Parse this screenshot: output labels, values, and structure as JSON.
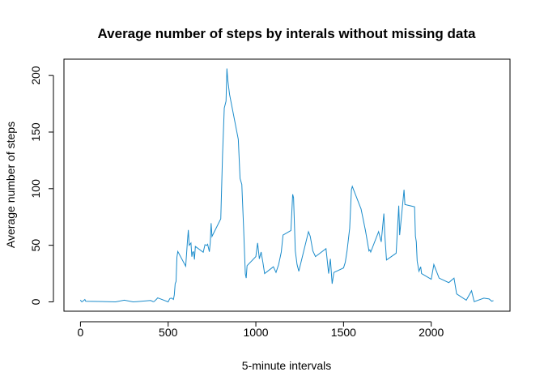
{
  "chart_data": {
    "type": "line",
    "title": "Average number of steps by interals without missing data",
    "x_label": "5-minute intervals",
    "y_label": "Average number of steps",
    "color": "#1c8ccb",
    "x": [
      0,
      5,
      10,
      25,
      30,
      100,
      150,
      200,
      250,
      300,
      320,
      400,
      415,
      420,
      435,
      440,
      450,
      500,
      505,
      510,
      520,
      530,
      535,
      540,
      545,
      550,
      555,
      600,
      610,
      615,
      620,
      630,
      635,
      640,
      645,
      650,
      655,
      700,
      710,
      720,
      725,
      735,
      740,
      745,
      750,
      800,
      810,
      820,
      830,
      835,
      840,
      850,
      900,
      910,
      920,
      930,
      935,
      940,
      945,
      950,
      1000,
      1010,
      1020,
      1030,
      1040,
      1050,
      1100,
      1115,
      1130,
      1145,
      1155,
      1200,
      1210,
      1215,
      1225,
      1235,
      1245,
      1300,
      1310,
      1325,
      1340,
      1400,
      1415,
      1425,
      1435,
      1445,
      1500,
      1510,
      1520,
      1535,
      1545,
      1550,
      1600,
      1625,
      1645,
      1650,
      1655,
      1700,
      1715,
      1730,
      1735,
      1745,
      1800,
      1815,
      1820,
      1845,
      1850,
      1905,
      1910,
      1915,
      1920,
      1930,
      1940,
      1945,
      2000,
      2015,
      2030,
      2045,
      2100,
      2115,
      2130,
      2145,
      2200,
      2230,
      2245,
      2300,
      2330,
      2345,
      2355
    ],
    "values": [
      1.7,
      0.3,
      0.1,
      2.1,
      0.5,
      0.3,
      0.2,
      0,
      1.5,
      0,
      0.2,
      1.2,
      0.2,
      0.3,
      2.6,
      3.5,
      3,
      0,
      1.6,
      3,
      3.3,
      2.1,
      6.1,
      16,
      18,
      39.5,
      44.5,
      31.5,
      53.8,
      63.5,
      50,
      52,
      39.9,
      44,
      44.2,
      37.4,
      49,
      43.8,
      50.5,
      49.9,
      50.9,
      44.3,
      52.3,
      69.5,
      57.8,
      73.4,
      129.4,
      171.2,
      177.3,
      206.2,
      195.9,
      183.4,
      143.5,
      109,
      103.7,
      66.2,
      45.2,
      24.8,
      21,
      32,
      40,
      52,
      38,
      44,
      35,
      25,
      31,
      26,
      33,
      44,
      59,
      63,
      95,
      92,
      45,
      33,
      27,
      62,
      58,
      45,
      40,
      47,
      25,
      38,
      16,
      26,
      30,
      35,
      45,
      65,
      99,
      102,
      82,
      63,
      45,
      46,
      44,
      62,
      53,
      78,
      60,
      37,
      43,
      85,
      59,
      99,
      86,
      84,
      58,
      53,
      36,
      27,
      31,
      25,
      20,
      33,
      27,
      21,
      17,
      19,
      21,
      7,
      1.5,
      9.8,
      0.2,
      3.3,
      2.6,
      0.6,
      1.1
    ],
    "xlim": [
      -94.2,
      2449.2
    ],
    "xticks": [
      0,
      500,
      1000,
      1500,
      2000
    ],
    "ylim": [
      -8.25,
      214.42
    ],
    "yticks": [
      0,
      50,
      100,
      150,
      200
    ]
  }
}
